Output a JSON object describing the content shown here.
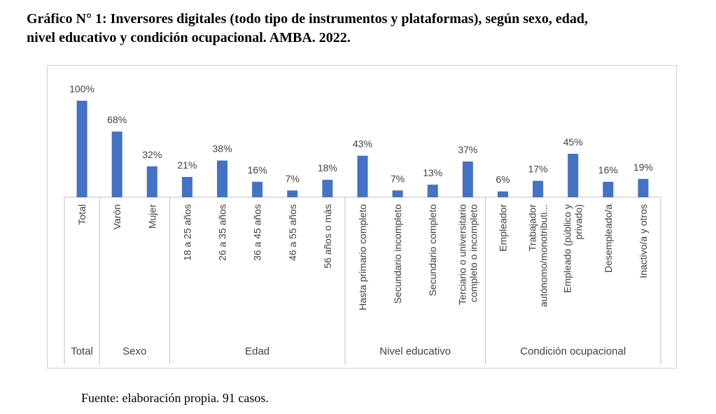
{
  "title": {
    "line1": "Gráfico N° 1: Inversores digitales (todo tipo de instrumentos y plataformas), según sexo, edad,",
    "line2": "nivel educativo y condición ocupacional. AMBA. 2022."
  },
  "source": "Fuente: elaboración propia. 91 casos.",
  "colors": {
    "bar": "#4472c4",
    "axis": "#bfbfbf",
    "text": "#404040"
  },
  "chart_data": {
    "type": "bar",
    "ylim": [
      0,
      100
    ],
    "categories": [
      "Total",
      "Varón",
      "Mujer",
      "18 a 25 años",
      "26 a 35 años",
      "36 a 45 años",
      "46 a 55 años",
      "56 años o más",
      "Hasta primario completo",
      "Secundario incompleto",
      "Secundario completo",
      [
        "Terciario o universitario",
        "completo o incompleto"
      ],
      "Empleador",
      [
        "Trabajador",
        "autónomo/monotributi..."
      ],
      [
        "Empleado (público y",
        "privado)"
      ],
      "Desempleado/a",
      "Inactivo/a y otros"
    ],
    "values": [
      100,
      68,
      32,
      21,
      38,
      16,
      7,
      18,
      43,
      7,
      13,
      37,
      6,
      17,
      45,
      16,
      19
    ],
    "data_labels": [
      "100%",
      "68%",
      "32%",
      "21%",
      "38%",
      "16%",
      "7%",
      "18%",
      "43%",
      "7%",
      "13%",
      "37%",
      "6%",
      "17%",
      "45%",
      "16%",
      "19%"
    ],
    "groups": [
      {
        "name": "Total",
        "count": 1
      },
      {
        "name": "Sexo",
        "count": 2
      },
      {
        "name": "Edad",
        "count": 5
      },
      {
        "name": "Nivel educativo",
        "count": 4
      },
      {
        "name": "Condición ocupacional",
        "count": 5
      }
    ]
  }
}
